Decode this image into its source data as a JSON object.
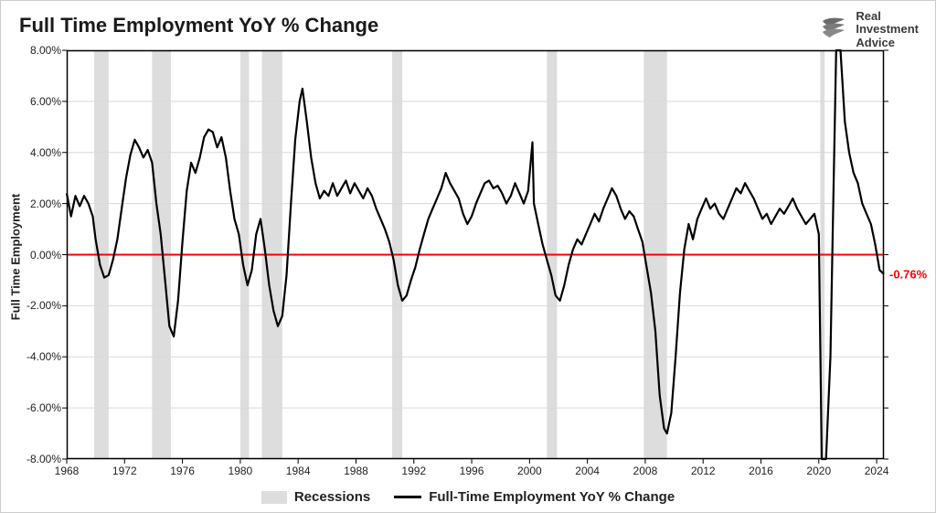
{
  "chart": {
    "type": "line",
    "title": "Full Time Employment YoY % Change",
    "ylabel": "Full Time Employment",
    "background_color": "#ffffff",
    "border_color": "#000000",
    "grid_color": "#d9d9d9",
    "line_color": "#000000",
    "line_width": 2.2,
    "zero_line_color": "#ff0000",
    "zero_line_width": 2,
    "recession_fill": "#dddddd",
    "xlim": [
      1968,
      2024.5
    ],
    "ylim": [
      -8,
      8
    ],
    "xticks": [
      1968,
      1972,
      1976,
      1980,
      1984,
      1988,
      1992,
      1996,
      2000,
      2004,
      2008,
      2012,
      2016,
      2020,
      2024
    ],
    "yticks": [
      -8,
      -6,
      -4,
      -2,
      0,
      2,
      4,
      6,
      8
    ],
    "ytick_format_suffix": ".00%",
    "final_value": -0.76,
    "final_label": "-0.76%",
    "label_color": "#ff0000",
    "title_fontsize": 22,
    "axis_fontsize": 12,
    "ylabel_fontsize": 13,
    "legend_fontsize": 15,
    "recessions": [
      {
        "start": 1969.9,
        "end": 1970.9
      },
      {
        "start": 1973.9,
        "end": 1975.2
      },
      {
        "start": 1980.0,
        "end": 1980.6
      },
      {
        "start": 1981.5,
        "end": 1982.9
      },
      {
        "start": 1990.5,
        "end": 1991.2
      },
      {
        "start": 2001.2,
        "end": 2001.9
      },
      {
        "start": 2007.9,
        "end": 2009.5
      },
      {
        "start": 2020.1,
        "end": 2020.4
      }
    ],
    "series": [
      {
        "x": 1968.0,
        "y": 2.4
      },
      {
        "x": 1968.3,
        "y": 1.5
      },
      {
        "x": 1968.6,
        "y": 2.3
      },
      {
        "x": 1968.9,
        "y": 1.9
      },
      {
        "x": 1969.2,
        "y": 2.3
      },
      {
        "x": 1969.5,
        "y": 2.0
      },
      {
        "x": 1969.8,
        "y": 1.5
      },
      {
        "x": 1970.0,
        "y": 0.6
      },
      {
        "x": 1970.3,
        "y": -0.4
      },
      {
        "x": 1970.6,
        "y": -0.9
      },
      {
        "x": 1970.9,
        "y": -0.8
      },
      {
        "x": 1971.2,
        "y": -0.2
      },
      {
        "x": 1971.5,
        "y": 0.6
      },
      {
        "x": 1971.8,
        "y": 1.8
      },
      {
        "x": 1972.1,
        "y": 3.0
      },
      {
        "x": 1972.4,
        "y": 3.9
      },
      {
        "x": 1972.7,
        "y": 4.5
      },
      {
        "x": 1973.0,
        "y": 4.2
      },
      {
        "x": 1973.3,
        "y": 3.8
      },
      {
        "x": 1973.6,
        "y": 4.1
      },
      {
        "x": 1973.9,
        "y": 3.6
      },
      {
        "x": 1974.2,
        "y": 2.0
      },
      {
        "x": 1974.5,
        "y": 0.8
      },
      {
        "x": 1974.8,
        "y": -1.0
      },
      {
        "x": 1975.1,
        "y": -2.8
      },
      {
        "x": 1975.4,
        "y": -3.2
      },
      {
        "x": 1975.7,
        "y": -1.8
      },
      {
        "x": 1976.0,
        "y": 0.5
      },
      {
        "x": 1976.3,
        "y": 2.5
      },
      {
        "x": 1976.6,
        "y": 3.6
      },
      {
        "x": 1976.9,
        "y": 3.2
      },
      {
        "x": 1977.2,
        "y": 3.8
      },
      {
        "x": 1977.5,
        "y": 4.6
      },
      {
        "x": 1977.8,
        "y": 4.9
      },
      {
        "x": 1978.1,
        "y": 4.8
      },
      {
        "x": 1978.4,
        "y": 4.2
      },
      {
        "x": 1978.7,
        "y": 4.6
      },
      {
        "x": 1979.0,
        "y": 3.8
      },
      {
        "x": 1979.3,
        "y": 2.5
      },
      {
        "x": 1979.6,
        "y": 1.4
      },
      {
        "x": 1979.9,
        "y": 0.8
      },
      {
        "x": 1980.2,
        "y": -0.4
      },
      {
        "x": 1980.5,
        "y": -1.2
      },
      {
        "x": 1980.8,
        "y": -0.6
      },
      {
        "x": 1981.1,
        "y": 0.8
      },
      {
        "x": 1981.4,
        "y": 1.4
      },
      {
        "x": 1981.7,
        "y": 0.2
      },
      {
        "x": 1982.0,
        "y": -1.2
      },
      {
        "x": 1982.3,
        "y": -2.2
      },
      {
        "x": 1982.6,
        "y": -2.8
      },
      {
        "x": 1982.9,
        "y": -2.4
      },
      {
        "x": 1983.2,
        "y": -0.8
      },
      {
        "x": 1983.5,
        "y": 2.0
      },
      {
        "x": 1983.8,
        "y": 4.5
      },
      {
        "x": 1984.1,
        "y": 6.0
      },
      {
        "x": 1984.3,
        "y": 6.5
      },
      {
        "x": 1984.6,
        "y": 5.2
      },
      {
        "x": 1984.9,
        "y": 3.8
      },
      {
        "x": 1985.2,
        "y": 2.8
      },
      {
        "x": 1985.5,
        "y": 2.2
      },
      {
        "x": 1985.8,
        "y": 2.5
      },
      {
        "x": 1986.1,
        "y": 2.3
      },
      {
        "x": 1986.4,
        "y": 2.8
      },
      {
        "x": 1986.7,
        "y": 2.3
      },
      {
        "x": 1987.0,
        "y": 2.6
      },
      {
        "x": 1987.3,
        "y": 2.9
      },
      {
        "x": 1987.6,
        "y": 2.4
      },
      {
        "x": 1987.9,
        "y": 2.8
      },
      {
        "x": 1988.2,
        "y": 2.5
      },
      {
        "x": 1988.5,
        "y": 2.2
      },
      {
        "x": 1988.8,
        "y": 2.6
      },
      {
        "x": 1989.1,
        "y": 2.3
      },
      {
        "x": 1989.4,
        "y": 1.8
      },
      {
        "x": 1989.7,
        "y": 1.4
      },
      {
        "x": 1990.0,
        "y": 1.0
      },
      {
        "x": 1990.3,
        "y": 0.5
      },
      {
        "x": 1990.6,
        "y": -0.2
      },
      {
        "x": 1990.9,
        "y": -1.2
      },
      {
        "x": 1991.2,
        "y": -1.8
      },
      {
        "x": 1991.5,
        "y": -1.6
      },
      {
        "x": 1991.8,
        "y": -1.0
      },
      {
        "x": 1992.1,
        "y": -0.5
      },
      {
        "x": 1992.4,
        "y": 0.2
      },
      {
        "x": 1992.7,
        "y": 0.8
      },
      {
        "x": 1993.0,
        "y": 1.4
      },
      {
        "x": 1993.3,
        "y": 1.8
      },
      {
        "x": 1993.6,
        "y": 2.2
      },
      {
        "x": 1993.9,
        "y": 2.6
      },
      {
        "x": 1994.2,
        "y": 3.2
      },
      {
        "x": 1994.5,
        "y": 2.8
      },
      {
        "x": 1994.8,
        "y": 2.5
      },
      {
        "x": 1995.1,
        "y": 2.2
      },
      {
        "x": 1995.4,
        "y": 1.6
      },
      {
        "x": 1995.7,
        "y": 1.2
      },
      {
        "x": 1996.0,
        "y": 1.5
      },
      {
        "x": 1996.3,
        "y": 2.0
      },
      {
        "x": 1996.6,
        "y": 2.4
      },
      {
        "x": 1996.9,
        "y": 2.8
      },
      {
        "x": 1997.2,
        "y": 2.9
      },
      {
        "x": 1997.5,
        "y": 2.6
      },
      {
        "x": 1997.8,
        "y": 2.7
      },
      {
        "x": 1998.1,
        "y": 2.4
      },
      {
        "x": 1998.4,
        "y": 2.0
      },
      {
        "x": 1998.7,
        "y": 2.3
      },
      {
        "x": 1999.0,
        "y": 2.8
      },
      {
        "x": 1999.3,
        "y": 2.4
      },
      {
        "x": 1999.6,
        "y": 2.0
      },
      {
        "x": 1999.9,
        "y": 2.5
      },
      {
        "x": 2000.2,
        "y": 4.4
      },
      {
        "x": 2000.3,
        "y": 2.0
      },
      {
        "x": 2000.6,
        "y": 1.2
      },
      {
        "x": 2000.9,
        "y": 0.4
      },
      {
        "x": 2001.2,
        "y": -0.2
      },
      {
        "x": 2001.5,
        "y": -0.8
      },
      {
        "x": 2001.8,
        "y": -1.6
      },
      {
        "x": 2002.1,
        "y": -1.8
      },
      {
        "x": 2002.4,
        "y": -1.2
      },
      {
        "x": 2002.7,
        "y": -0.4
      },
      {
        "x": 2003.0,
        "y": 0.2
      },
      {
        "x": 2003.3,
        "y": 0.6
      },
      {
        "x": 2003.6,
        "y": 0.4
      },
      {
        "x": 2003.9,
        "y": 0.8
      },
      {
        "x": 2004.2,
        "y": 1.2
      },
      {
        "x": 2004.5,
        "y": 1.6
      },
      {
        "x": 2004.8,
        "y": 1.3
      },
      {
        "x": 2005.1,
        "y": 1.8
      },
      {
        "x": 2005.4,
        "y": 2.2
      },
      {
        "x": 2005.7,
        "y": 2.6
      },
      {
        "x": 2006.0,
        "y": 2.3
      },
      {
        "x": 2006.3,
        "y": 1.8
      },
      {
        "x": 2006.6,
        "y": 1.4
      },
      {
        "x": 2006.9,
        "y": 1.7
      },
      {
        "x": 2007.2,
        "y": 1.5
      },
      {
        "x": 2007.5,
        "y": 1.0
      },
      {
        "x": 2007.8,
        "y": 0.5
      },
      {
        "x": 2008.1,
        "y": -0.5
      },
      {
        "x": 2008.4,
        "y": -1.5
      },
      {
        "x": 2008.7,
        "y": -3.0
      },
      {
        "x": 2009.0,
        "y": -5.5
      },
      {
        "x": 2009.3,
        "y": -6.8
      },
      {
        "x": 2009.5,
        "y": -7.0
      },
      {
        "x": 2009.8,
        "y": -6.2
      },
      {
        "x": 2010.1,
        "y": -4.0
      },
      {
        "x": 2010.4,
        "y": -1.5
      },
      {
        "x": 2010.7,
        "y": 0.2
      },
      {
        "x": 2011.0,
        "y": 1.2
      },
      {
        "x": 2011.3,
        "y": 0.6
      },
      {
        "x": 2011.6,
        "y": 1.4
      },
      {
        "x": 2011.9,
        "y": 1.8
      },
      {
        "x": 2012.2,
        "y": 2.2
      },
      {
        "x": 2012.5,
        "y": 1.8
      },
      {
        "x": 2012.8,
        "y": 2.0
      },
      {
        "x": 2013.1,
        "y": 1.6
      },
      {
        "x": 2013.4,
        "y": 1.4
      },
      {
        "x": 2013.7,
        "y": 1.8
      },
      {
        "x": 2014.0,
        "y": 2.2
      },
      {
        "x": 2014.3,
        "y": 2.6
      },
      {
        "x": 2014.6,
        "y": 2.4
      },
      {
        "x": 2014.9,
        "y": 2.8
      },
      {
        "x": 2015.2,
        "y": 2.5
      },
      {
        "x": 2015.5,
        "y": 2.2
      },
      {
        "x": 2015.8,
        "y": 1.8
      },
      {
        "x": 2016.1,
        "y": 1.4
      },
      {
        "x": 2016.4,
        "y": 1.6
      },
      {
        "x": 2016.7,
        "y": 1.2
      },
      {
        "x": 2017.0,
        "y": 1.5
      },
      {
        "x": 2017.3,
        "y": 1.8
      },
      {
        "x": 2017.6,
        "y": 1.6
      },
      {
        "x": 2017.9,
        "y": 1.9
      },
      {
        "x": 2018.2,
        "y": 2.2
      },
      {
        "x": 2018.5,
        "y": 1.8
      },
      {
        "x": 2018.8,
        "y": 1.5
      },
      {
        "x": 2019.1,
        "y": 1.2
      },
      {
        "x": 2019.4,
        "y": 1.4
      },
      {
        "x": 2019.7,
        "y": 1.6
      },
      {
        "x": 2020.0,
        "y": 0.8
      },
      {
        "x": 2020.2,
        "y": -8.0
      },
      {
        "x": 2020.3,
        "y": -12.0
      },
      {
        "x": 2020.5,
        "y": -8.0
      },
      {
        "x": 2020.8,
        "y": -4.0
      },
      {
        "x": 2021.0,
        "y": 2.0
      },
      {
        "x": 2021.2,
        "y": 8.0
      },
      {
        "x": 2021.3,
        "y": 12.0
      },
      {
        "x": 2021.5,
        "y": 8.0
      },
      {
        "x": 2021.8,
        "y": 5.2
      },
      {
        "x": 2022.1,
        "y": 4.0
      },
      {
        "x": 2022.4,
        "y": 3.2
      },
      {
        "x": 2022.7,
        "y": 2.8
      },
      {
        "x": 2023.0,
        "y": 2.0
      },
      {
        "x": 2023.3,
        "y": 1.6
      },
      {
        "x": 2023.6,
        "y": 1.2
      },
      {
        "x": 2023.9,
        "y": 0.4
      },
      {
        "x": 2024.2,
        "y": -0.6
      },
      {
        "x": 2024.5,
        "y": -0.76
      }
    ],
    "legend": {
      "recessions": "Recessions",
      "line": "Full-Time Employment YoY % Change"
    },
    "brand": {
      "line1": "Real",
      "line2": "Investment",
      "line3": "Advice"
    }
  }
}
